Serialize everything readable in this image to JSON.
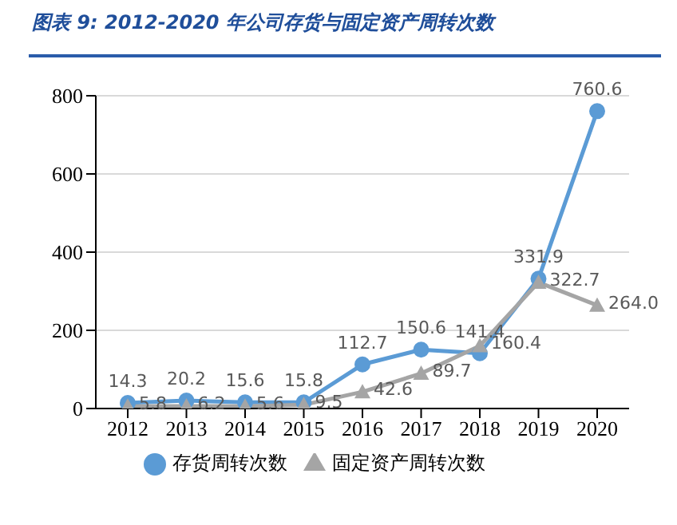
{
  "chart_data": {
    "type": "line",
    "title": "图表 9:  2012-2020 年公司存货与固定资产周转次数",
    "categories": [
      "2012",
      "2013",
      "2014",
      "2015",
      "2016",
      "2017",
      "2018",
      "2019",
      "2020"
    ],
    "series": [
      {
        "name": "存货周转次数",
        "color": "#5b9bd5",
        "marker": "circle",
        "values": [
          14.3,
          20.2,
          15.6,
          15.8,
          112.7,
          150.6,
          141.4,
          331.9,
          760.6
        ],
        "value_labels": [
          "14.3",
          "20.2",
          "15.6",
          "15.8",
          "112.7",
          "150.6",
          "141.4",
          "331.9",
          "760.6"
        ]
      },
      {
        "name": "固定资产周转次数",
        "color": "#a5a5a5",
        "marker": "triangle",
        "values": [
          5.8,
          6.2,
          5.6,
          9.5,
          42.6,
          89.7,
          160.4,
          322.7,
          264.0
        ],
        "value_labels": [
          "5.8",
          "6.2",
          "5.6",
          "9.5",
          "42.6",
          "89.7",
          "160.4",
          "322.7",
          "264.0"
        ]
      }
    ],
    "ylim": [
      0,
      800
    ],
    "yticks": [
      0,
      200,
      400,
      600,
      800
    ],
    "grid": "y",
    "legend": "bottom"
  }
}
